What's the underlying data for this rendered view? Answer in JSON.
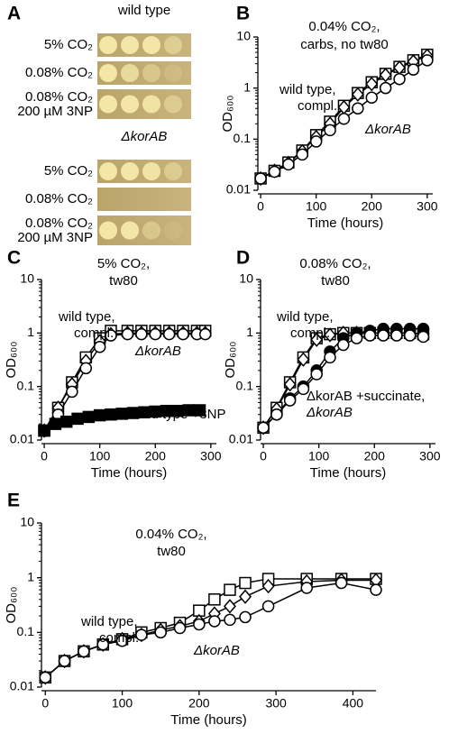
{
  "panel_a": {
    "label": "A",
    "groups": [
      {
        "title": "wild type",
        "rows": [
          [
            "5% CO₂"
          ],
          [
            "0.08% CO₂"
          ],
          [
            "0.08% CO₂",
            "200 µM 3NP"
          ]
        ]
      },
      {
        "title": "ΔkorAB",
        "rows": [
          [
            "5% CO₂"
          ],
          [
            "0.08% CO₂"
          ],
          [
            "0.08% CO₂",
            "200 µM 3NP"
          ]
        ]
      }
    ]
  },
  "chart_data": [
    {
      "type": "line",
      "panel": "B",
      "xlabel": "Time (hours)",
      "ylabel": "OD₆₀₀",
      "ylog": true,
      "xlim": [
        -5,
        310
      ],
      "xticks": [
        0,
        100,
        200,
        300
      ],
      "ylim": [
        0.01,
        10
      ],
      "yticks": [
        0.01,
        0.1,
        1,
        10
      ],
      "annotations": [
        "0.04% CO₂,",
        "carbs, no tw80",
        "wild type,",
        "compl.",
        "ΔkorAB"
      ],
      "series": [
        {
          "marker": "square",
          "filled": false,
          "color": "#000000",
          "x": [
            0,
            25,
            50,
            75,
            100,
            125,
            150,
            175,
            200,
            225,
            250,
            275,
            300
          ],
          "values": [
            0.017,
            0.024,
            0.035,
            0.06,
            0.12,
            0.22,
            0.45,
            0.8,
            1.3,
            1.9,
            2.6,
            3.5,
            4.5
          ]
        },
        {
          "marker": "diamond",
          "filled": false,
          "color": "#000000",
          "x": [
            0,
            25,
            50,
            75,
            100,
            125,
            150,
            175,
            200,
            225,
            250,
            275,
            300
          ],
          "values": [
            0.017,
            0.024,
            0.034,
            0.058,
            0.11,
            0.2,
            0.42,
            0.75,
            1.2,
            1.8,
            2.5,
            3.3,
            4.3
          ]
        },
        {
          "marker": "circle",
          "filled": false,
          "color": "#000000",
          "x": [
            0,
            25,
            50,
            75,
            100,
            125,
            150,
            175,
            200,
            225,
            250,
            275,
            300
          ],
          "values": [
            0.017,
            0.023,
            0.032,
            0.05,
            0.09,
            0.15,
            0.25,
            0.4,
            0.65,
            1.0,
            1.5,
            2.3,
            3.5
          ]
        }
      ]
    },
    {
      "type": "line",
      "panel": "C",
      "xlabel": "Time (hours)",
      "ylabel": "OD₆₀₀",
      "ylog": true,
      "xlim": [
        -5,
        310
      ],
      "xticks": [
        0,
        100,
        200,
        300
      ],
      "ylim": [
        0.01,
        10
      ],
      "yticks": [
        0.01,
        0.1,
        1,
        10
      ],
      "annotations": [
        "5% CO₂,",
        "tw80",
        "wild type,",
        "compl.",
        "ΔkorAB",
        "wild type +3NP"
      ],
      "series": [
        {
          "marker": "square",
          "filled": false,
          "color": "#000000",
          "x": [
            0,
            25,
            50,
            75,
            100,
            120,
            150,
            175,
            200,
            225,
            250,
            275,
            290
          ],
          "values": [
            0.015,
            0.04,
            0.12,
            0.35,
            0.8,
            1.1,
            1.1,
            1.1,
            1.1,
            1.1,
            1.1,
            1.1,
            1.1
          ]
        },
        {
          "marker": "diamond",
          "filled": false,
          "color": "#000000",
          "x": [
            0,
            25,
            50,
            75,
            100,
            120,
            150,
            175,
            200,
            225,
            250,
            275,
            290
          ],
          "values": [
            0.015,
            0.04,
            0.11,
            0.3,
            0.7,
            0.95,
            1.0,
            1.0,
            1.0,
            1.0,
            1.0,
            1.0,
            1.0
          ]
        },
        {
          "marker": "circle",
          "filled": false,
          "color": "#000000",
          "x": [
            0,
            25,
            50,
            75,
            100,
            120,
            150,
            175,
            200,
            225,
            250,
            275,
            290
          ],
          "values": [
            0.015,
            0.03,
            0.08,
            0.22,
            0.55,
            0.9,
            0.95,
            0.95,
            0.95,
            0.95,
            0.95,
            0.95,
            0.95
          ]
        },
        {
          "marker": "square",
          "filled": true,
          "color": "#000000",
          "x": [
            0,
            20,
            40,
            60,
            80,
            100,
            120,
            140,
            160,
            180,
            200,
            220,
            240,
            260,
            280
          ],
          "values": [
            0.015,
            0.02,
            0.022,
            0.025,
            0.027,
            0.029,
            0.03,
            0.031,
            0.032,
            0.033,
            0.034,
            0.035,
            0.035,
            0.036,
            0.036
          ]
        }
      ]
    },
    {
      "type": "line",
      "panel": "D",
      "xlabel": "Time (hours)",
      "ylabel": "OD₆₀₀",
      "ylog": true,
      "xlim": [
        -5,
        310
      ],
      "xticks": [
        0,
        100,
        200,
        300
      ],
      "ylim": [
        0.01,
        10
      ],
      "yticks": [
        0.01,
        0.1,
        1,
        10
      ],
      "annotations": [
        "0.08% CO₂,",
        "tw80",
        "wild type,",
        "compl.",
        "ΔkorAB +succinate,",
        "ΔkorAB"
      ],
      "series": [
        {
          "marker": "square",
          "filled": false,
          "color": "#000000",
          "x": [
            0,
            24,
            48,
            72,
            96,
            120,
            144,
            168,
            192,
            216,
            240,
            264,
            288
          ],
          "values": [
            0.017,
            0.04,
            0.12,
            0.35,
            0.8,
            0.95,
            1.0,
            1.0,
            1.0,
            1.0,
            1.0,
            1.0,
            0.95
          ]
        },
        {
          "marker": "diamond",
          "filled": false,
          "color": "#000000",
          "x": [
            0,
            24,
            48,
            72,
            96,
            120,
            144,
            168,
            192,
            216,
            240,
            264,
            288
          ],
          "values": [
            0.017,
            0.038,
            0.11,
            0.32,
            0.75,
            0.92,
            1.0,
            1.0,
            1.0,
            1.0,
            1.0,
            1.0,
            0.95
          ]
        },
        {
          "marker": "circle",
          "filled": true,
          "color": "#000000",
          "x": [
            0,
            24,
            48,
            72,
            96,
            120,
            144,
            168,
            192,
            216,
            240,
            264,
            288
          ],
          "values": [
            0.017,
            0.03,
            0.06,
            0.1,
            0.2,
            0.45,
            0.8,
            1.0,
            1.1,
            1.2,
            1.2,
            1.2,
            1.2
          ]
        },
        {
          "marker": "circle",
          "filled": false,
          "color": "#000000",
          "x": [
            0,
            24,
            48,
            72,
            96,
            120,
            144,
            168,
            192,
            216,
            240,
            264,
            288
          ],
          "values": [
            0.017,
            0.03,
            0.055,
            0.09,
            0.17,
            0.35,
            0.6,
            0.8,
            0.9,
            0.9,
            0.9,
            0.9,
            0.85
          ]
        }
      ]
    },
    {
      "type": "line",
      "panel": "E",
      "xlabel": "Time (hours)",
      "ylabel": "OD₆₀₀",
      "ylog": true,
      "xlim": [
        -5,
        430
      ],
      "xticks": [
        0,
        100,
        200,
        300,
        400
      ],
      "ylim": [
        0.01,
        10
      ],
      "yticks": [
        0.01,
        0.1,
        1,
        10
      ],
      "annotations": [
        "0.04% CO₂,",
        "tw80",
        "wild type,",
        "compl.",
        "ΔkorAB"
      ],
      "series": [
        {
          "marker": "square",
          "filled": false,
          "color": "#000000",
          "x": [
            0,
            25,
            50,
            75,
            100,
            125,
            150,
            175,
            200,
            220,
            240,
            260,
            290,
            340,
            385,
            430
          ],
          "values": [
            0.015,
            0.03,
            0.045,
            0.06,
            0.075,
            0.1,
            0.12,
            0.15,
            0.25,
            0.4,
            0.6,
            0.8,
            0.95,
            0.95,
            0.95,
            0.95
          ]
        },
        {
          "marker": "diamond",
          "filled": false,
          "color": "#000000",
          "x": [
            0,
            25,
            50,
            75,
            100,
            125,
            150,
            175,
            200,
            220,
            240,
            260,
            290,
            340,
            385,
            430
          ],
          "values": [
            0.015,
            0.03,
            0.045,
            0.06,
            0.075,
            0.09,
            0.11,
            0.13,
            0.16,
            0.22,
            0.3,
            0.45,
            0.7,
            0.85,
            0.9,
            0.9
          ]
        },
        {
          "marker": "circle",
          "filled": false,
          "color": "#000000",
          "x": [
            0,
            25,
            50,
            75,
            100,
            125,
            150,
            175,
            200,
            220,
            240,
            260,
            290,
            340,
            385,
            430
          ],
          "values": [
            0.015,
            0.03,
            0.045,
            0.06,
            0.07,
            0.09,
            0.1,
            0.12,
            0.14,
            0.16,
            0.17,
            0.19,
            0.3,
            0.65,
            0.8,
            0.6
          ]
        }
      ]
    }
  ]
}
